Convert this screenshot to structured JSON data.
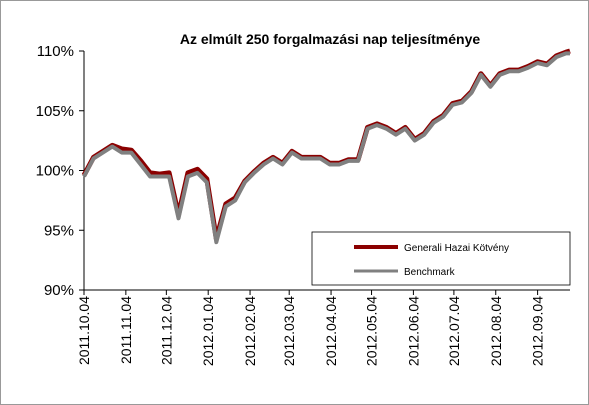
{
  "chart_data": {
    "type": "line",
    "title": "Az elmúlt 250 forgalmazási nap teljesítménye",
    "x": [
      "2011.10.04",
      "2011.10.11",
      "2011.10.18",
      "2011.10.25",
      "2011.11.01",
      "2011.11.08",
      "2011.11.15",
      "2011.11.22",
      "2011.11.29",
      "2011.12.06",
      "2011.12.13",
      "2011.12.20",
      "2011.12.27",
      "2012.01.03",
      "2012.01.10",
      "2012.01.17",
      "2012.01.24",
      "2012.01.31",
      "2012.02.07",
      "2012.02.14",
      "2012.02.21",
      "2012.02.28",
      "2012.03.06",
      "2012.03.13",
      "2012.03.20",
      "2012.03.27",
      "2012.04.03",
      "2012.04.10",
      "2012.04.17",
      "2012.04.24",
      "2012.05.01",
      "2012.05.08",
      "2012.05.15",
      "2012.05.22",
      "2012.05.29",
      "2012.06.05",
      "2012.06.12",
      "2012.06.19",
      "2012.06.26",
      "2012.07.03",
      "2012.07.10",
      "2012.07.17",
      "2012.07.24",
      "2012.07.31",
      "2012.08.07",
      "2012.08.14",
      "2012.08.21",
      "2012.08.28",
      "2012.09.04",
      "2012.09.11",
      "2012.09.18",
      "2012.09.25",
      "2012.09.28"
    ],
    "series": [
      {
        "name": "Generali Hazai Kötvény",
        "color": "#8b0000",
        "values": [
          99.6,
          101.1,
          101.6,
          102.1,
          101.8,
          101.7,
          100.8,
          99.8,
          99.7,
          99.8,
          96.3,
          99.8,
          100.1,
          99.3,
          94.3,
          97.2,
          97.7,
          99.1,
          99.9,
          100.6,
          101.1,
          100.6,
          101.6,
          101.1,
          101.1,
          101.1,
          100.6,
          100.6,
          100.9,
          100.9,
          103.6,
          103.9,
          103.6,
          103.1,
          103.6,
          102.6,
          103.1,
          104.1,
          104.6,
          105.6,
          105.8,
          106.6,
          108.1,
          107.1,
          108.1,
          108.4,
          108.4,
          108.7,
          109.1,
          108.9,
          109.6,
          109.9,
          110
        ]
      },
      {
        "name": "Benchmark",
        "color": "#808080",
        "values": [
          99.5,
          101,
          101.5,
          102,
          101.5,
          101.5,
          100.5,
          99.5,
          99.5,
          99.5,
          96,
          99.5,
          99.8,
          99,
          94,
          97,
          97.5,
          99,
          99.8,
          100.5,
          101,
          100.5,
          101.5,
          101,
          101,
          101,
          100.5,
          100.5,
          100.8,
          100.8,
          103.5,
          103.8,
          103.5,
          103,
          103.5,
          102.5,
          103,
          104,
          104.5,
          105.5,
          105.7,
          106.5,
          108,
          107,
          108,
          108.3,
          108.3,
          108.6,
          109,
          108.8,
          109.5,
          109.8,
          109.8
        ]
      }
    ],
    "xlim": [
      "2011.10.04",
      "2012.09.28"
    ],
    "xticks": [
      "2011.10.04",
      "2011.11.04",
      "2011.12.04",
      "2012.01.04",
      "2012.02.04",
      "2012.03.04",
      "2012.04.04",
      "2012.05.04",
      "2012.06.04",
      "2012.07.04",
      "2012.08.04",
      "2012.09.04"
    ],
    "ylim": [
      90,
      110
    ],
    "yticks": [
      {
        "value": 90,
        "label": "90%"
      },
      {
        "value": 95,
        "label": "95%"
      },
      {
        "value": 100,
        "label": "100%"
      },
      {
        "value": 105,
        "label": "105%"
      },
      {
        "value": 110,
        "label": "110%"
      }
    ],
    "legend": "lower right"
  }
}
